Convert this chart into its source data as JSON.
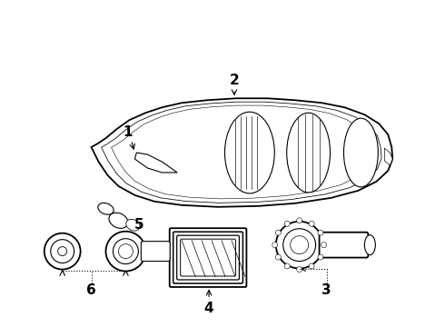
{
  "background_color": "#ffffff",
  "line_color": "#000000",
  "figsize": [
    4.9,
    3.6
  ],
  "dpi": 100,
  "label_fontsize": 11,
  "label_fontweight": "bold"
}
